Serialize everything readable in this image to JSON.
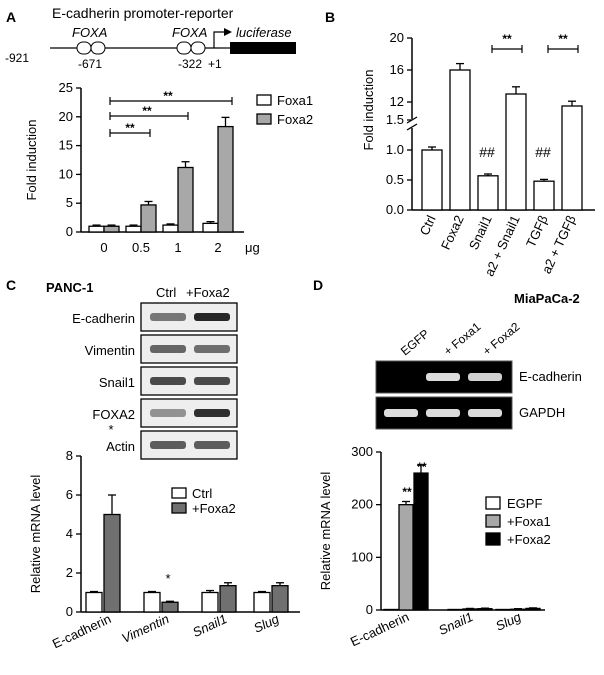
{
  "panels": {
    "A": {
      "letter": "A",
      "promoter": {
        "title": "E-cadherin promoter-reporter",
        "element1_label": "FOXA",
        "element2_label": "FOXA",
        "pos_start": "-921",
        "pos_element1": "-671",
        "pos_element2": "-322",
        "pos_tss": "+1",
        "reporter_label": "luciferase"
      },
      "sig_marks": [
        "**",
        "**",
        "**"
      ]
    },
    "B": {
      "letter": "B",
      "sig_pairs": [
        "**",
        "**"
      ],
      "hash_marks": [
        "##",
        "##"
      ]
    },
    "C": {
      "letter": "C",
      "cell_line": "PANC-1",
      "blot": {
        "lane_labels": [
          "Ctrl",
          "+Foxa2"
        ],
        "rows": [
          "E-cadherin",
          "Vimentin",
          "Snail1",
          "FOXA2",
          "Actin"
        ]
      },
      "sig_marks": [
        "*",
        "*"
      ]
    },
    "D": {
      "letter": "D",
      "cell_line": "MiaPaCa-2",
      "gel": {
        "lane_labels": [
          "EGFP",
          "+ Foxa1",
          "+ Foxa2"
        ],
        "rows": [
          "E-cadherin",
          "GAPDH"
        ]
      },
      "sig_marks": [
        "**",
        "**"
      ]
    }
  },
  "chart_data": [
    {
      "id": "A",
      "type": "bar",
      "categories": [
        "0",
        "0.5",
        "1",
        "2"
      ],
      "x_unit": "μg",
      "ylabel": "Fold induction",
      "ylim": [
        0,
        25
      ],
      "yticks": [
        0,
        5,
        10,
        15,
        20,
        25
      ],
      "legend": "top-right",
      "series": [
        {
          "name": "Foxa1",
          "color": "#ffffff",
          "values": [
            1.0,
            1.0,
            1.2,
            1.5
          ],
          "errors": [
            0.2,
            0.2,
            0.2,
            0.3
          ]
        },
        {
          "name": "Foxa2",
          "color": "#a8a8a8",
          "values": [
            1.0,
            4.7,
            11.2,
            18.3
          ],
          "errors": [
            0.2,
            0.6,
            1.0,
            1.6
          ]
        }
      ]
    },
    {
      "id": "B",
      "type": "bar",
      "categories": [
        "Ctrl",
        "Foxa2",
        "Snail1",
        "a2 + Snail1",
        "TGFβ",
        "a2 + TGFβ"
      ],
      "ylabel": "Fold induction",
      "ylim": [
        0,
        20
      ],
      "yticks": [
        0.0,
        0.5,
        1.0,
        1.5,
        12,
        16,
        20
      ],
      "broken_axis": [
        1.5,
        10
      ],
      "values": [
        1.0,
        16.0,
        0.57,
        13.0,
        0.48,
        11.5
      ],
      "errors": [
        0.05,
        0.8,
        0.03,
        0.9,
        0.03,
        0.6
      ],
      "bar_color": "#ffffff"
    },
    {
      "id": "C",
      "type": "bar",
      "categories": [
        "E-cadherin",
        "Vimentin",
        "Snail1",
        "Slug"
      ],
      "ylabel": "Relative mRNA level",
      "ylim": [
        0,
        8
      ],
      "yticks": [
        0,
        2,
        4,
        6,
        8
      ],
      "legend": "top-right",
      "series": [
        {
          "name": "Ctrl",
          "color": "#ffffff",
          "values": [
            1.0,
            1.0,
            1.0,
            1.0
          ],
          "errors": [
            0.05,
            0.05,
            0.1,
            0.05
          ]
        },
        {
          "name": "+Foxa2",
          "color": "#707070",
          "values": [
            5.0,
            0.5,
            1.35,
            1.35
          ],
          "errors": [
            1.0,
            0.05,
            0.15,
            0.15
          ]
        }
      ]
    },
    {
      "id": "D",
      "type": "bar",
      "categories": [
        "E-cadherin",
        "Snail1",
        "Slug"
      ],
      "ylabel": "Relative mRNA level",
      "ylim": [
        0,
        300
      ],
      "yticks": [
        0,
        100,
        200,
        300
      ],
      "legend": "top-right",
      "series": [
        {
          "name": "EGPF",
          "color": "#ffffff",
          "values": [
            1,
            1,
            1
          ],
          "errors": [
            0,
            0.5,
            0.5
          ]
        },
        {
          "name": "+Foxa1",
          "color": "#a8a8a8",
          "values": [
            200,
            2,
            1.5
          ],
          "errors": [
            6,
            1,
            1
          ]
        },
        {
          "name": "+Foxa2",
          "color": "#000000",
          "values": [
            260,
            2.5,
            3
          ],
          "errors": [
            15,
            1,
            1
          ]
        }
      ]
    }
  ]
}
